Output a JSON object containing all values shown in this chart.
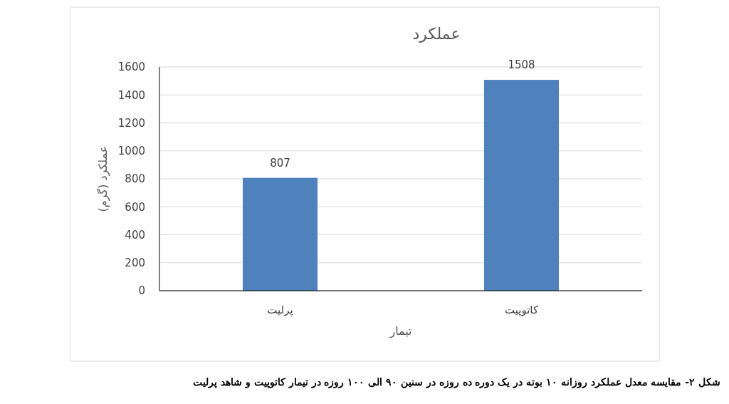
{
  "chart_data": {
    "type": "bar",
    "title": "عملکرد",
    "xlabel": "تیمار",
    "ylabel": "عملکرد (گرم)",
    "categories": [
      "پرلیت",
      "کاتوپیت"
    ],
    "values": [
      807,
      1508
    ],
    "color": "#4f81bd",
    "ylim": [
      0,
      1600
    ],
    "yticks": [
      0,
      200,
      400,
      600,
      800,
      1000,
      1200,
      1400,
      1600
    ],
    "grid": "y",
    "data_labels": true,
    "annotations": [
      "شکل ۲- مقایسه معدل عملکرد روزانه ۱۰ بوته در یک دوره ده روزه در سنین ۹۰ الی ۱۰۰ روزه در تیمار کاتوپیت و شاهد پرلیت"
    ]
  }
}
